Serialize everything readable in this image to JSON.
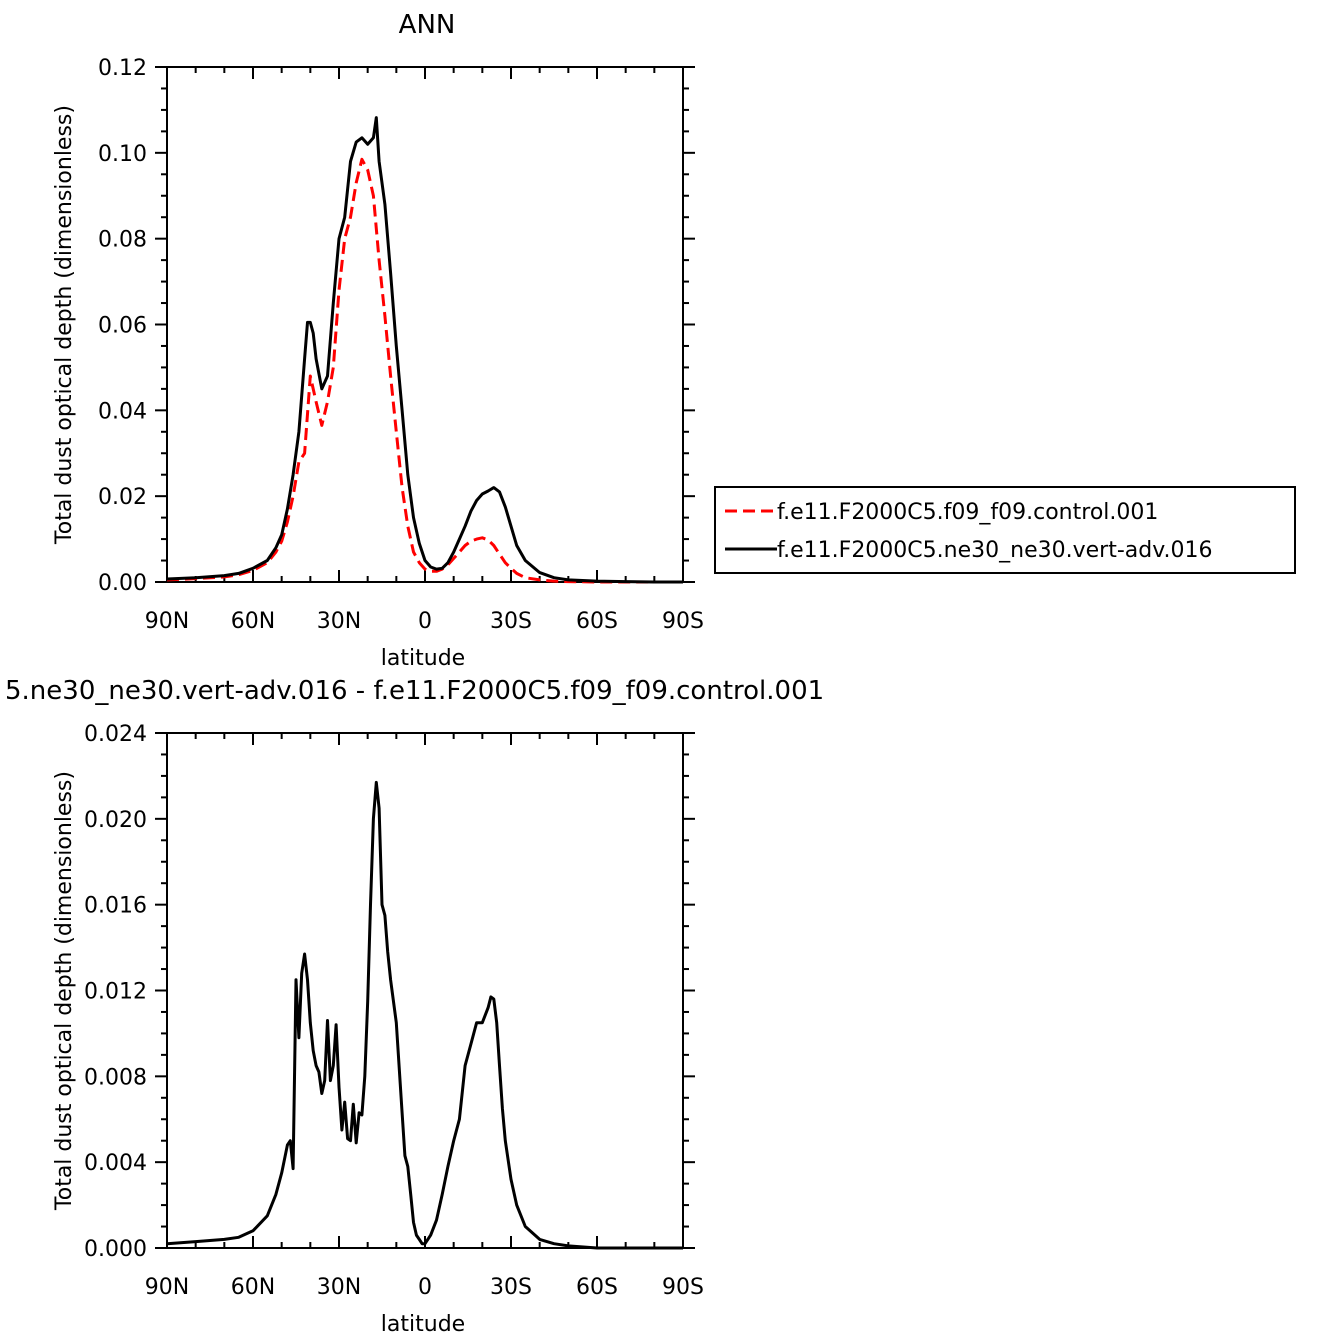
{
  "chart_data": [
    {
      "type": "line",
      "title": "ANN",
      "xlabel": "latitude",
      "ylabel": "Total dust optical depth (dimensionless)",
      "xlim": [
        90,
        -90
      ],
      "ylim": [
        0,
        0.12
      ],
      "x_ticks": [
        90,
        60,
        30,
        0,
        -30,
        -60,
        -90
      ],
      "x_tick_labels": [
        "90N",
        "60N",
        "30N",
        "0",
        "30S",
        "60S",
        "90S"
      ],
      "y_ticks": [
        0,
        0.02,
        0.04,
        0.06,
        0.08,
        0.1,
        0.12
      ],
      "y_tick_labels": [
        "0.00",
        "0.02",
        "0.04",
        "0.06",
        "0.08",
        "0.10",
        "0.12"
      ],
      "legend_position": "right",
      "series": [
        {
          "name": "f.e11.F2000C5.f09_f09.control.001",
          "color": "#ff0000",
          "dash": "dashed",
          "x": [
            90,
            80,
            70,
            65,
            60,
            55,
            52,
            50,
            48,
            46,
            44,
            42,
            40,
            38,
            36,
            34,
            32,
            30,
            28,
            26,
            24,
            22,
            20,
            18,
            16,
            14,
            12,
            10,
            8,
            6,
            4,
            2,
            0,
            -2,
            -4,
            -6,
            -8,
            -10,
            -12,
            -14,
            -16,
            -18,
            -20,
            -22,
            -24,
            -26,
            -28,
            -30,
            -32,
            -35,
            -40,
            -45,
            -50,
            -60,
            -70,
            -80,
            -90
          ],
          "y": [
            0.0005,
            0.0008,
            0.0012,
            0.0017,
            0.0027,
            0.0045,
            0.007,
            0.0095,
            0.014,
            0.02,
            0.028,
            0.03,
            0.048,
            0.042,
            0.0365,
            0.042,
            0.05,
            0.068,
            0.08,
            0.085,
            0.093,
            0.0985,
            0.096,
            0.09,
            0.075,
            0.062,
            0.048,
            0.035,
            0.022,
            0.013,
            0.007,
            0.0045,
            0.003,
            0.0025,
            0.0025,
            0.003,
            0.004,
            0.0055,
            0.007,
            0.0085,
            0.0095,
            0.01,
            0.0103,
            0.0098,
            0.0085,
            0.0065,
            0.0045,
            0.0032,
            0.002,
            0.001,
            0.0005,
            0.0002,
            0.0001,
            0.0,
            0.0,
            0.0,
            0.0
          ]
        },
        {
          "name": "f.e11.F2000C5.ne30_ne30.vert-adv.016",
          "color": "#000000",
          "dash": "solid",
          "x": [
            90,
            80,
            70,
            65,
            60,
            55,
            52,
            50,
            48,
            46,
            44,
            42,
            41,
            40,
            39,
            38,
            36,
            34,
            32,
            30,
            28,
            26,
            24,
            22,
            20,
            18,
            17,
            16,
            14,
            12,
            10,
            8,
            6,
            4,
            2,
            0,
            -2,
            -4,
            -6,
            -8,
            -10,
            -12,
            -14,
            -16,
            -18,
            -20,
            -22,
            -24,
            -26,
            -28,
            -30,
            -32,
            -35,
            -40,
            -45,
            -50,
            -60,
            -70,
            -80,
            -90
          ],
          "y": [
            0.0007,
            0.001,
            0.0015,
            0.002,
            0.0032,
            0.005,
            0.008,
            0.011,
            0.017,
            0.025,
            0.035,
            0.052,
            0.0605,
            0.0605,
            0.058,
            0.052,
            0.045,
            0.048,
            0.065,
            0.08,
            0.085,
            0.098,
            0.1025,
            0.1035,
            0.102,
            0.1035,
            0.1082,
            0.098,
            0.088,
            0.072,
            0.055,
            0.04,
            0.025,
            0.015,
            0.009,
            0.005,
            0.0035,
            0.003,
            0.0032,
            0.0045,
            0.007,
            0.01,
            0.013,
            0.0165,
            0.019,
            0.0205,
            0.0212,
            0.022,
            0.021,
            0.0175,
            0.013,
            0.0085,
            0.005,
            0.0022,
            0.001,
            0.0005,
            0.0002,
            0.0001,
            0.0,
            0.0
          ]
        }
      ]
    },
    {
      "type": "line",
      "title": "5.ne30_ne30.vert-adv.016 - f.e11.F2000C5.f09_f09.control.001",
      "xlabel": "latitude",
      "ylabel": "Total dust optical depth (dimensionless)",
      "xlim": [
        90,
        -90
      ],
      "ylim": [
        0,
        0.024
      ],
      "x_ticks": [
        90,
        60,
        30,
        0,
        -30,
        -60,
        -90
      ],
      "x_tick_labels": [
        "90N",
        "60N",
        "30N",
        "0",
        "30S",
        "60S",
        "90S"
      ],
      "y_ticks": [
        0,
        0.004,
        0.008,
        0.012,
        0.016,
        0.02,
        0.024
      ],
      "y_tick_labels": [
        "0.000",
        "0.004",
        "0.008",
        "0.012",
        "0.016",
        "0.020",
        "0.024"
      ],
      "series": [
        {
          "color": "#000000",
          "dash": "solid",
          "x": [
            90,
            80,
            70,
            65,
            60,
            55,
            52,
            50,
            48,
            47,
            46,
            45,
            44,
            43,
            42,
            41,
            40,
            39,
            38,
            37,
            36,
            35,
            34,
            33,
            32,
            31,
            30,
            29,
            28,
            27,
            26,
            25,
            24,
            23,
            22,
            21,
            20,
            19,
            18,
            17,
            16,
            15,
            14,
            13,
            12,
            10,
            8,
            7,
            6,
            5,
            4,
            3,
            2,
            1,
            0,
            -2,
            -4,
            -6,
            -8,
            -10,
            -12,
            -14,
            -16,
            -18,
            -20,
            -22,
            -23,
            -24,
            -25,
            -26,
            -27,
            -28,
            -30,
            -32,
            -35,
            -40,
            -45,
            -50,
            -60,
            -70,
            -80,
            -90
          ],
          "y": [
            0.0002,
            0.0003,
            0.0004,
            0.0005,
            0.0008,
            0.0015,
            0.0025,
            0.0035,
            0.0048,
            0.005,
            0.0037,
            0.0125,
            0.0098,
            0.0128,
            0.0137,
            0.0125,
            0.0105,
            0.0092,
            0.0085,
            0.0082,
            0.0072,
            0.0078,
            0.0106,
            0.0078,
            0.0085,
            0.0104,
            0.0075,
            0.0055,
            0.0068,
            0.0051,
            0.005,
            0.0067,
            0.0049,
            0.0063,
            0.0062,
            0.008,
            0.0115,
            0.016,
            0.02,
            0.0217,
            0.0205,
            0.016,
            0.0155,
            0.0138,
            0.0125,
            0.0105,
            0.0063,
            0.0043,
            0.0038,
            0.0025,
            0.0012,
            0.0006,
            0.0004,
            0.0002,
            0.0002,
            0.0006,
            0.0013,
            0.0025,
            0.0038,
            0.005,
            0.006,
            0.0085,
            0.0095,
            0.0105,
            0.0105,
            0.0112,
            0.0117,
            0.0116,
            0.0105,
            0.0085,
            0.0065,
            0.005,
            0.0032,
            0.002,
            0.001,
            0.0004,
            0.0002,
            0.0001,
            0.0,
            0.0,
            0.0,
            0.0
          ]
        }
      ]
    }
  ]
}
